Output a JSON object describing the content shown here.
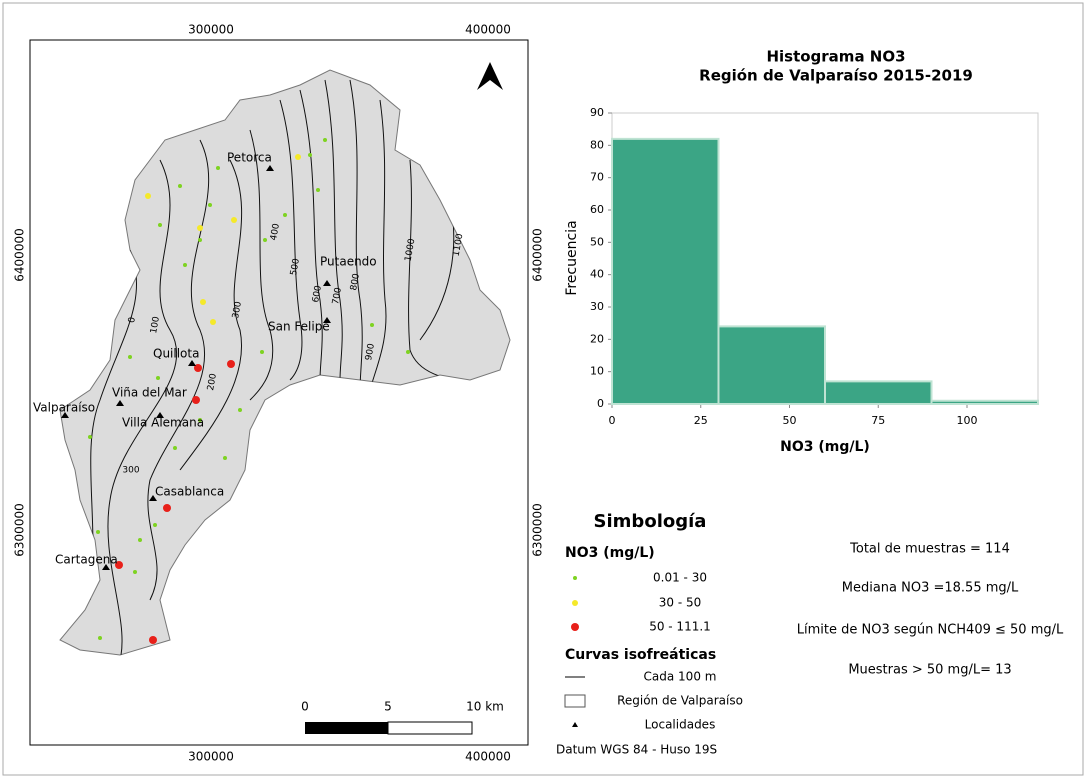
{
  "map": {
    "coords_top": [
      "300000",
      "400000"
    ],
    "coords_bottom": [
      "300000",
      "400000"
    ],
    "coords_left": [
      "6400000",
      "6300000"
    ],
    "coords_right": [
      "6400000",
      "6300000"
    ],
    "localities": [
      "Petorca",
      "Putaendo",
      "San Felipe",
      "Quillota",
      "Viña del Mar",
      "Valparaíso",
      "Villa Alemana",
      "Casablanca",
      "Cartagena"
    ],
    "contour_labels": [
      "0",
      "100",
      "200",
      "300",
      "300",
      "400",
      "500",
      "600",
      "700",
      "800",
      "900",
      "1000",
      "1100"
    ],
    "scale": [
      "0",
      "5",
      "10 km"
    ]
  },
  "chart_data": {
    "type": "histogram",
    "title": [
      "Histograma NO3",
      "Región de Valparaíso 2015-2019"
    ],
    "x_label": "NO3 (mg/L)",
    "y_label": "Frecuencia",
    "bins": [
      0,
      30,
      60,
      90,
      120
    ],
    "values": [
      82,
      24,
      7,
      1
    ],
    "color": "#3ba585",
    "xlim": [
      0,
      120
    ],
    "xticks": [
      0,
      25,
      50,
      75,
      100
    ],
    "ylim": [
      0,
      90
    ],
    "yticks": [
      0,
      10,
      20,
      30,
      40,
      50,
      60,
      70,
      80,
      90
    ]
  },
  "legend": {
    "title": "Simbología",
    "no3_title": "NO3 (mg/L)",
    "classes": [
      "0.01 - 30",
      "30 - 50",
      "50 - 111.1"
    ],
    "curves_title": "Curvas isofreáticas",
    "curves": "Cada 100 m",
    "region": "Región de Valparaíso",
    "localities": "Localidades",
    "datum": "Datum WGS 84 - Huso 19S"
  },
  "stats": [
    "Total de muestras = 114",
    "Mediana NO3 =18.55 mg/L",
    "Límite de NO3 según NCH409 ≤ 50 mg/L",
    "Muestras > 50 mg/L= 13"
  ]
}
